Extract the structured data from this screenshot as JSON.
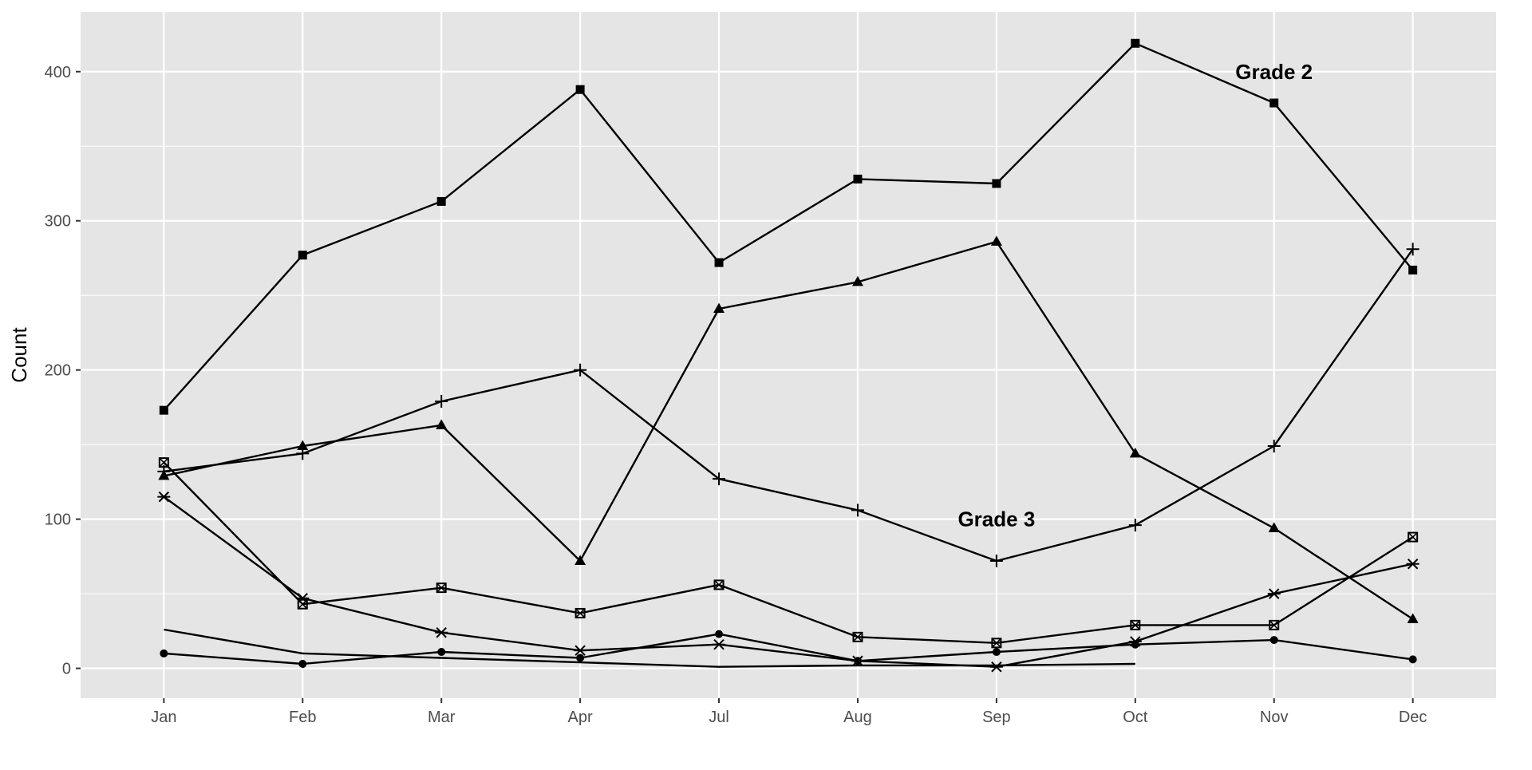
{
  "chart_data": {
    "type": "line",
    "title": "",
    "xlabel": "",
    "ylabel": "Count",
    "categories": [
      "Jan",
      "Feb",
      "Mar",
      "Apr",
      "Jul",
      "Aug",
      "Sep",
      "Oct",
      "Nov",
      "Dec"
    ],
    "ylim": [
      -20,
      440
    ],
    "yticks": [
      0,
      100,
      200,
      300,
      400
    ],
    "grid": true,
    "legend": "none",
    "colors": {
      "panel": "#e5e5e5",
      "grid": "#ffffff",
      "line": "#000000",
      "tick_text": "#4d4d4d"
    },
    "annotations": [
      {
        "text": "Grade 2",
        "x": "Nov",
        "y": 400
      },
      {
        "text": "Grade 3",
        "x": "Sep",
        "y": 100
      }
    ],
    "series": [
      {
        "marker": "square",
        "values": [
          173,
          277,
          313,
          388,
          272,
          328,
          325,
          419,
          379,
          267
        ]
      },
      {
        "marker": "triangle",
        "values": [
          129,
          149,
          163,
          72,
          241,
          259,
          286,
          144,
          94,
          33
        ]
      },
      {
        "marker": "plus",
        "values": [
          132,
          144,
          179,
          200,
          127,
          106,
          72,
          96,
          149,
          281
        ]
      },
      {
        "marker": "square-x",
        "values": [
          138,
          43,
          54,
          37,
          56,
          21,
          17,
          29,
          29,
          88
        ]
      },
      {
        "marker": "asterisk",
        "values": [
          115,
          47,
          24,
          12,
          16,
          5,
          1,
          18,
          50,
          70
        ]
      },
      {
        "marker": "circle",
        "values": [
          10,
          3,
          11,
          7,
          23,
          5,
          11,
          16,
          19,
          6
        ]
      },
      {
        "marker": "none",
        "values": [
          26,
          10,
          7,
          4,
          1,
          2,
          2,
          3,
          null,
          null
        ]
      }
    ]
  }
}
